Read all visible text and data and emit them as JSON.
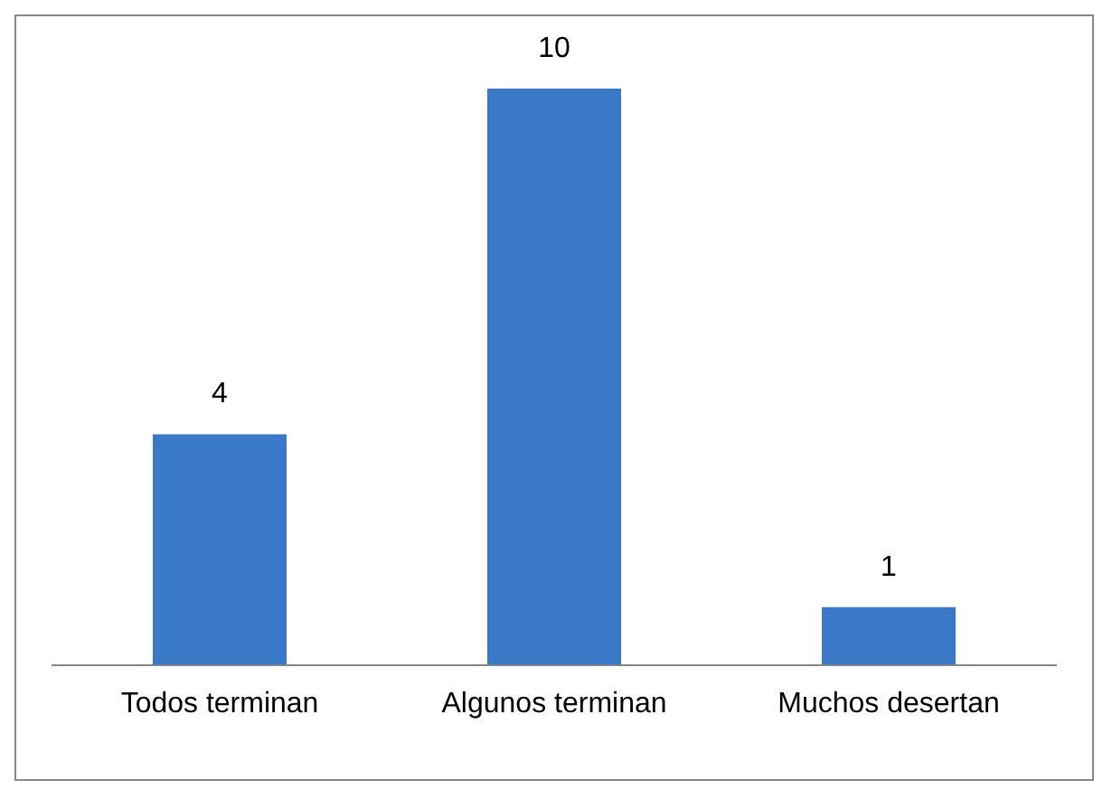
{
  "chart_data": {
    "type": "bar",
    "categories": [
      "Todos terminan",
      "Algunos terminan",
      "Muchos desertan"
    ],
    "values": [
      4,
      10,
      1
    ],
    "color": "#3a78c8",
    "data_labels": true,
    "grid": false,
    "legend": false
  }
}
